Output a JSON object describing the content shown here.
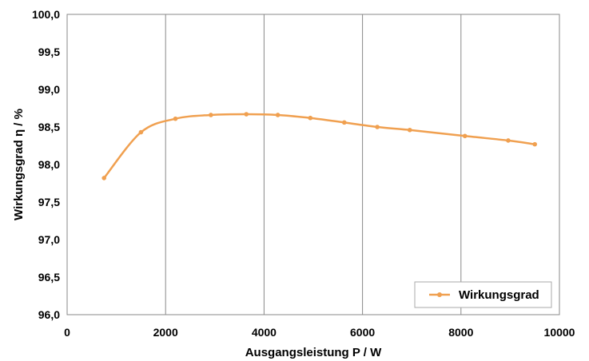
{
  "chart_data": {
    "type": "line",
    "title": "",
    "xlabel": "Ausgangsleistung P / W",
    "ylabel": "Wirkungsgrad η / %",
    "xlim": [
      0,
      10000
    ],
    "ylim": [
      96.0,
      100.0
    ],
    "x_ticks": [
      "0",
      "2000",
      "4000",
      "6000",
      "8000",
      "10000"
    ],
    "y_ticks": [
      "96,0",
      "96,5",
      "97,0",
      "97,5",
      "98,0",
      "98,5",
      "99,0",
      "99,5",
      "100,0"
    ],
    "grid": "vertical",
    "legend_position": "bottom-right",
    "series": [
      {
        "name": "Wirkungsgrad",
        "color": "#F0A050",
        "x": [
          750,
          1500,
          2200,
          2920,
          3640,
          4280,
          4940,
          5630,
          6300,
          6960,
          8080,
          8960,
          9500
        ],
        "y": [
          97.82,
          98.43,
          98.61,
          98.66,
          98.67,
          98.66,
          98.62,
          98.56,
          98.5,
          98.46,
          98.38,
          98.32,
          98.27
        ]
      }
    ]
  }
}
